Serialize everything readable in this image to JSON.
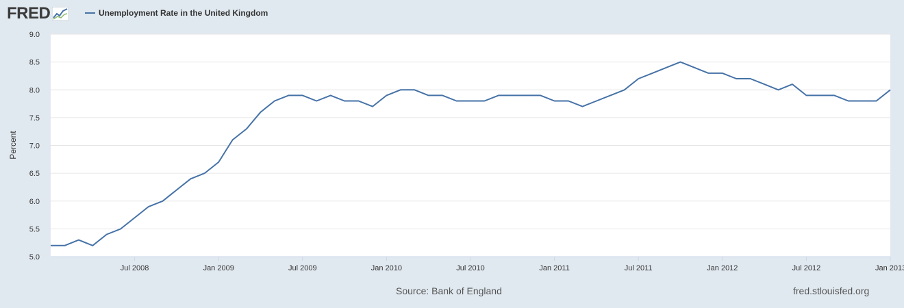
{
  "logo": {
    "text": "FRED",
    "icon": "fred-chart-icon"
  },
  "legend": {
    "label": "Unemployment Rate in the United Kingdom",
    "color": "#4572a7"
  },
  "footer": {
    "source": "Source: Bank of England",
    "site": "fred.stlouisfed.org"
  },
  "chart_data": {
    "type": "line",
    "title": "",
    "ylabel": "Percent",
    "xlabel": "",
    "ylim": [
      5.0,
      9.0
    ],
    "yticks": [
      "5.0",
      "5.5",
      "6.0",
      "6.5",
      "7.0",
      "7.5",
      "8.0",
      "8.5",
      "9.0"
    ],
    "xlim": [
      "2008-01",
      "2013-01"
    ],
    "xticks": [
      {
        "date": "2008-07",
        "label": "Jul 2008"
      },
      {
        "date": "2009-01",
        "label": "Jan 2009"
      },
      {
        "date": "2009-07",
        "label": "Jul 2009"
      },
      {
        "date": "2010-01",
        "label": "Jan 2010"
      },
      {
        "date": "2010-07",
        "label": "Jul 2010"
      },
      {
        "date": "2011-01",
        "label": "Jan 2011"
      },
      {
        "date": "2011-07",
        "label": "Jul 2011"
      },
      {
        "date": "2012-01",
        "label": "Jan 2012"
      },
      {
        "date": "2012-07",
        "label": "Jul 2012"
      },
      {
        "date": "2013-01",
        "label": "Jan 2013"
      }
    ],
    "grid": true,
    "series": [
      {
        "name": "Unemployment Rate in the United Kingdom",
        "color": "#4572a7",
        "x": [
          "2008-01",
          "2008-02",
          "2008-03",
          "2008-04",
          "2008-05",
          "2008-06",
          "2008-07",
          "2008-08",
          "2008-09",
          "2008-10",
          "2008-11",
          "2008-12",
          "2009-01",
          "2009-02",
          "2009-03",
          "2009-04",
          "2009-05",
          "2009-06",
          "2009-07",
          "2009-08",
          "2009-09",
          "2009-10",
          "2009-11",
          "2009-12",
          "2010-01",
          "2010-02",
          "2010-03",
          "2010-04",
          "2010-05",
          "2010-06",
          "2010-07",
          "2010-08",
          "2010-09",
          "2010-10",
          "2010-11",
          "2010-12",
          "2011-01",
          "2011-02",
          "2011-03",
          "2011-04",
          "2011-05",
          "2011-06",
          "2011-07",
          "2011-08",
          "2011-09",
          "2011-10",
          "2011-11",
          "2011-12",
          "2012-01",
          "2012-02",
          "2012-03",
          "2012-04",
          "2012-05",
          "2012-06",
          "2012-07",
          "2012-08",
          "2012-09",
          "2012-10",
          "2012-11",
          "2012-12",
          "2013-01"
        ],
        "values": [
          5.2,
          5.2,
          5.3,
          5.2,
          5.4,
          5.5,
          5.7,
          5.9,
          6.0,
          6.2,
          6.4,
          6.5,
          6.7,
          7.1,
          7.3,
          7.6,
          7.8,
          7.9,
          7.9,
          7.8,
          7.9,
          7.8,
          7.8,
          7.7,
          7.9,
          8.0,
          8.0,
          7.9,
          7.9,
          7.8,
          7.8,
          7.8,
          7.9,
          7.9,
          7.9,
          7.9,
          7.8,
          7.8,
          7.7,
          7.8,
          7.9,
          8.0,
          8.2,
          8.3,
          8.4,
          8.5,
          8.4,
          8.3,
          8.3,
          8.2,
          8.2,
          8.1,
          8.0,
          8.1,
          7.9,
          7.9,
          7.9,
          7.8,
          7.8,
          7.8,
          8.0
        ]
      }
    ]
  }
}
